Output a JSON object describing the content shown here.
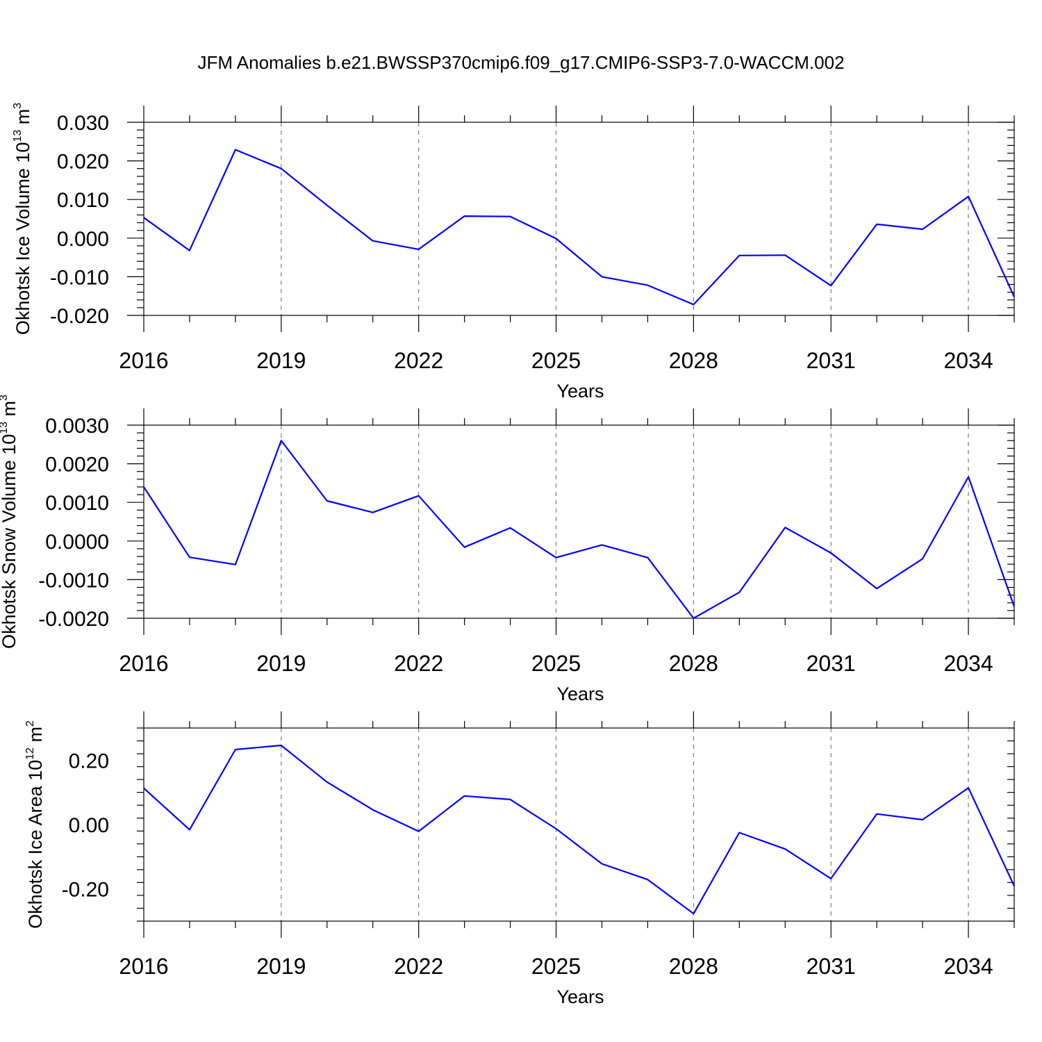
{
  "title": "JFM Anomalies b.e21.BWSSP370cmip6.f09_g17.CMIP6-SSP3-7.0-WACCM.002",
  "line_color": "#0000ff",
  "chart_data": [
    {
      "type": "line",
      "ylabel": {
        "text": "Okhotsk Ice Volume 10",
        "exp": "13",
        "unit": " m",
        "unit_exp": "3"
      },
      "xlabel": "Years",
      "xlim": [
        2016,
        2035
      ],
      "ylim": [
        -0.02,
        0.03
      ],
      "xticks": [
        2016,
        2019,
        2022,
        2025,
        2028,
        2031,
        2034
      ],
      "xtick_labels": [
        "2016",
        "2019",
        "2022",
        "2025",
        "2028",
        "2031",
        "2034"
      ],
      "yticks": [
        -0.02,
        -0.01,
        0.0,
        0.01,
        0.02,
        0.03
      ],
      "ytick_labels": [
        "-0.020",
        "-0.010",
        "0.000",
        "0.010",
        "0.020",
        "0.030"
      ],
      "grid_x": true,
      "series": [
        {
          "x": [
            2016,
            2017,
            2018,
            2019,
            2020,
            2021,
            2022,
            2023,
            2024,
            2025,
            2026,
            2027,
            2028,
            2029,
            2030,
            2031,
            2032,
            2033,
            2034,
            2035
          ],
          "y": [
            0.0053,
            -0.0032,
            0.0229,
            0.018,
            0.0085,
            -0.0007,
            -0.0029,
            0.0057,
            0.0056,
            -0.0001,
            -0.01,
            -0.0122,
            -0.0172,
            -0.0045,
            -0.0044,
            -0.0123,
            0.0036,
            0.0023,
            0.0108,
            -0.0152
          ]
        }
      ]
    },
    {
      "type": "line",
      "ylabel": {
        "text": "Okhotsk Snow Volume 10",
        "exp": "13",
        "unit": " m",
        "unit_exp": "3"
      },
      "xlabel": "Years",
      "xlim": [
        2016,
        2035
      ],
      "ylim": [
        -0.002,
        0.003
      ],
      "xticks": [
        2016,
        2019,
        2022,
        2025,
        2028,
        2031,
        2034
      ],
      "xtick_labels": [
        "2016",
        "2019",
        "2022",
        "2025",
        "2028",
        "2031",
        "2034"
      ],
      "yticks": [
        -0.002,
        -0.001,
        0.0,
        0.001,
        0.002,
        0.003
      ],
      "ytick_labels": [
        "-0.0020",
        "-0.0010",
        "0.0000",
        "0.0010",
        "0.0020",
        "0.0030"
      ],
      "grid_x": true,
      "series": [
        {
          "x": [
            2016,
            2017,
            2018,
            2019,
            2020,
            2021,
            2022,
            2023,
            2024,
            2025,
            2026,
            2027,
            2028,
            2029,
            2030,
            2031,
            2032,
            2033,
            2034,
            2035
          ],
          "y": [
            0.0014,
            -0.00042,
            -0.00061,
            0.0026,
            0.00104,
            0.00074,
            0.00117,
            -0.00016,
            0.00034,
            -0.00043,
            -0.0001,
            -0.00043,
            -0.002,
            -0.00133,
            0.00035,
            -0.00031,
            -0.00123,
            -0.00046,
            0.00166,
            -0.0017
          ]
        }
      ]
    },
    {
      "type": "line",
      "ylabel": {
        "text": "Okhotsk Ice Area 10",
        "exp": "12",
        "unit": " m",
        "unit_exp": "2"
      },
      "xlabel": "Years",
      "xlim": [
        2016,
        2035
      ],
      "ylim": [
        -0.3,
        0.3
      ],
      "xticks": [
        2016,
        2019,
        2022,
        2025,
        2028,
        2031,
        2034
      ],
      "xtick_labels": [
        "2016",
        "2019",
        "2022",
        "2025",
        "2028",
        "2031",
        "2034"
      ],
      "yticks": [
        -0.2,
        0.0,
        0.2
      ],
      "ytick_labels": [
        "-0.20",
        "0.00",
        "0.20"
      ],
      "grid_x": true,
      "series": [
        {
          "x": [
            2016,
            2017,
            2018,
            2019,
            2020,
            2021,
            2022,
            2023,
            2024,
            2025,
            2026,
            2027,
            2028,
            2029,
            2030,
            2031,
            2032,
            2033,
            2034,
            2035
          ],
          "y": [
            0.113,
            -0.016,
            0.233,
            0.246,
            0.132,
            0.046,
            -0.021,
            0.089,
            0.078,
            -0.013,
            -0.122,
            -0.171,
            -0.277,
            -0.025,
            -0.076,
            -0.168,
            0.033,
            0.015,
            0.114,
            -0.191
          ]
        }
      ]
    }
  ]
}
